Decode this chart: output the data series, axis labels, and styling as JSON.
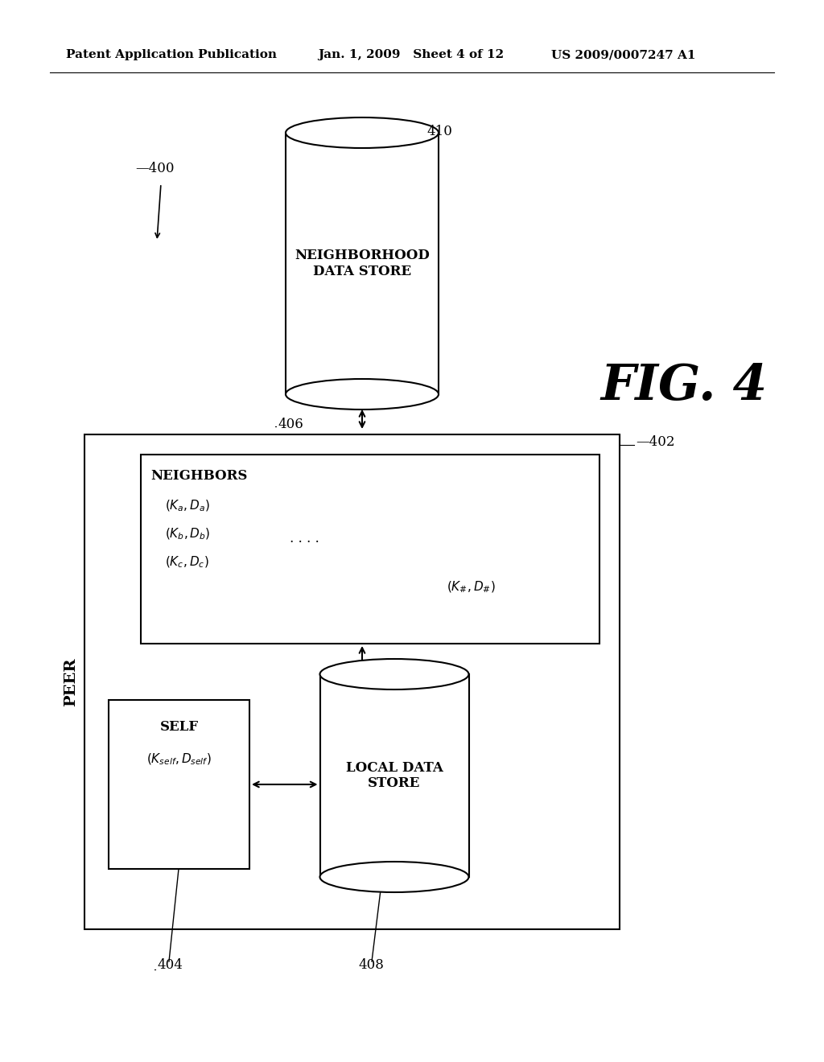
{
  "bg_color": "#ffffff",
  "header_left": "Patent Application Publication",
  "header_mid": "Jan. 1, 2009   Sheet 4 of 12",
  "header_right": "US 2009/0007247 A1",
  "fig_label": "FIG. 4",
  "label_400": "—400",
  "label_402": "—402",
  "label_404": "404",
  "label_406": "406",
  "label_408": "408",
  "label_410": "410",
  "peer_label": "PEER",
  "self_label": "SELF",
  "neighbors_label": "NEIGHBORS",
  "neighborhood_ds_label": "NEIGHBORHOOD\nDATA STORE",
  "local_ds_label": "LOCAL DATA\nSTORE"
}
